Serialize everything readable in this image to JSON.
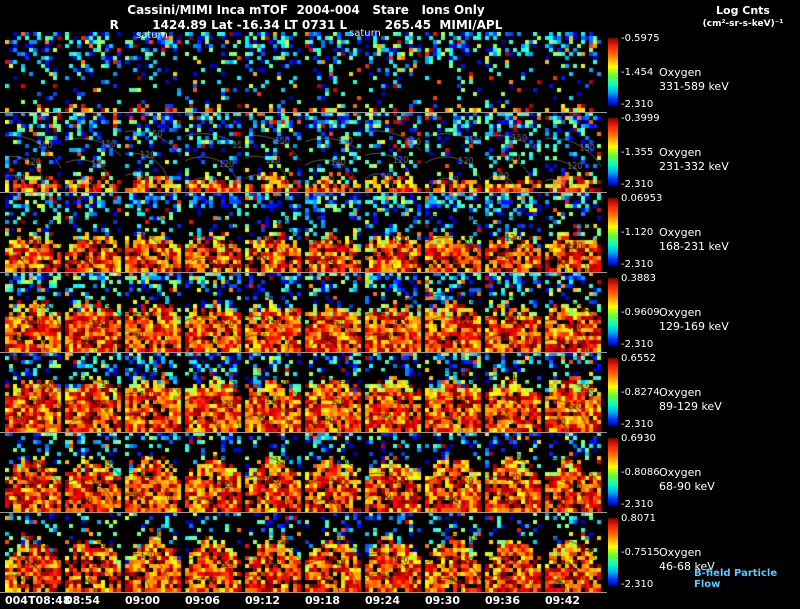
{
  "header": {
    "title": "Cassini/MIMI Inca mTOF  2004-004   Stare   Ions Only",
    "subtitle": "R        1424.89 Lat -16.34 LT 0731 L         265.45  MIMI/APL"
  },
  "colorbar_header": {
    "line1": "Log Cnts",
    "line2": "(cm²-sr-s-keV)⁻¹"
  },
  "annotations": [
    {
      "text": "saturn"
    },
    {
      "text": "saturn"
    }
  ],
  "rows": [
    {
      "species": "Oxygen",
      "energy": "331-589 keV",
      "cbar_top": "-0.5975",
      "cbar_mid": "-1.454",
      "cbar_bot": "-2.310"
    },
    {
      "species": "Oxygen",
      "energy": "231-332 keV",
      "cbar_top": "-0.3999",
      "cbar_mid": "-1.355",
      "cbar_bot": "-2.310"
    },
    {
      "species": "Oxygen",
      "energy": "168-231 keV",
      "cbar_top": "0.06953",
      "cbar_mid": "-1.120",
      "cbar_bot": "-2.310"
    },
    {
      "species": "Oxygen",
      "energy": "129-169 keV",
      "cbar_top": "0.3883",
      "cbar_mid": "-0.9609",
      "cbar_bot": "-2.310"
    },
    {
      "species": "Oxygen",
      "energy": "89-129 keV",
      "cbar_top": "0.6552",
      "cbar_mid": "-0.8274",
      "cbar_bot": "-2.310"
    },
    {
      "species": "Oxygen",
      "energy": "68-90 keV",
      "cbar_top": "0.6930",
      "cbar_mid": "-0.8086",
      "cbar_bot": "-2.310"
    },
    {
      "species": "Oxygen",
      "energy": "46-68 keV",
      "cbar_top": "0.8071",
      "cbar_mid": "-0.7515",
      "cbar_bot": "-2.310"
    }
  ],
  "time_axis": {
    "labels": [
      "004T08:48",
      "08:54",
      "09:00",
      "09:06",
      "09:12",
      "09:18",
      "09:24",
      "09:30",
      "09:36",
      "09:42"
    ]
  },
  "footer": {
    "bfield_label": "B-field Particle Flow"
  },
  "chart_data": {
    "type": "heatmap",
    "title": "Cassini/MIMI Inca mTOF 2004-004 Stare Ions Only",
    "ephemeris": {
      "R": 1424.89,
      "Lat": -16.34,
      "LT": "0731",
      "L": 265.45,
      "credit": "MIMI/APL"
    },
    "x_time": [
      "004T08:48",
      "08:54",
      "09:00",
      "09:06",
      "09:12",
      "09:18",
      "09:24",
      "09:30",
      "09:36",
      "09:42"
    ],
    "colorbar_units": "Log Cnts (cm²-sr-s-keV)⁻¹",
    "colormap": "rainbow",
    "contour_labels": [
      "90",
      "120",
      "150"
    ],
    "rows": [
      {
        "species": "Oxygen",
        "energy_keV": [
          331,
          589
        ],
        "scale": {
          "max": -0.5975,
          "mid": -1.454,
          "min": -2.31
        },
        "render": {
          "fill": 0.03,
          "dome": 0.0,
          "holes": 0.3,
          "speckle_top": 0.5,
          "speckle_rest": 0.1,
          "contours": "none"
        }
      },
      {
        "species": "Oxygen",
        "energy_keV": [
          231,
          332
        ],
        "scale": {
          "max": -0.3999,
          "mid": -1.355,
          "min": -2.31
        },
        "render": {
          "fill": 0.2,
          "dome": 0.1,
          "holes": 0.25,
          "speckle_top": 0.52,
          "speckle_rest": 0.16,
          "contours": "light"
        }
      },
      {
        "species": "Oxygen",
        "energy_keV": [
          168,
          231
        ],
        "scale": {
          "max": 0.06953,
          "mid": -1.12,
          "min": -2.31
        },
        "render": {
          "fill": 0.46,
          "dome": 0.12,
          "holes": 0.16,
          "speckle_top": 0.48,
          "speckle_rest": 0.22,
          "contours": "dark"
        }
      },
      {
        "species": "Oxygen",
        "energy_keV": [
          129,
          169
        ],
        "scale": {
          "max": 0.3883,
          "mid": -0.9609,
          "min": -2.31
        },
        "render": {
          "fill": 0.58,
          "dome": 0.1,
          "holes": 0.08,
          "speckle_top": 0.42,
          "speckle_rest": 0.24,
          "contours": "dark"
        }
      },
      {
        "species": "Oxygen",
        "energy_keV": [
          89,
          129
        ],
        "scale": {
          "max": 0.6552,
          "mid": -0.8274,
          "min": -2.31
        },
        "render": {
          "fill": 0.64,
          "dome": 0.14,
          "holes": 0.07,
          "speckle_top": 0.38,
          "speckle_rest": 0.26,
          "contours": "dark"
        }
      },
      {
        "species": "Oxygen",
        "energy_keV": [
          68,
          90
        ],
        "scale": {
          "max": 0.693,
          "mid": -0.8086,
          "min": -2.31
        },
        "render": {
          "fill": 0.66,
          "dome": 0.24,
          "holes": 0.12,
          "speckle_top": 0.3,
          "speckle_rest": 0.18,
          "contours": "dark"
        }
      },
      {
        "species": "Oxygen",
        "energy_keV": [
          46,
          68
        ],
        "scale": {
          "max": 0.8071,
          "mid": -0.7515,
          "min": -2.31
        },
        "render": {
          "fill": 0.68,
          "dome": 0.32,
          "holes": 0.14,
          "speckle_top": 0.26,
          "speckle_rest": 0.15,
          "contours": "dark"
        }
      }
    ]
  }
}
